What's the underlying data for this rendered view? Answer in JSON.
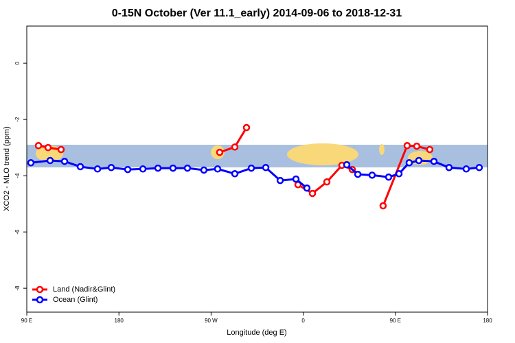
{
  "chart_data": {
    "type": "line",
    "title": "0-15N October (Ver 11.1_early)   2014-09-06 to 2018-12-31",
    "x_label": "Longitude (deg E)",
    "y_label": "XCO2 - MLO trend (ppm)",
    "xlim": [
      90,
      540
    ],
    "ylim": [
      -8.85,
      1.32
    ],
    "xticks": [
      {
        "value": 90,
        "label": "90 E"
      },
      180,
      {
        "value": 270,
        "label": "90 W"
      },
      {
        "value": 360,
        "label": "0"
      },
      {
        "value": 450,
        "label": "90 E"
      },
      {
        "value": 540,
        "label": "180"
      }
    ],
    "yticks": [
      0,
      -2,
      -4,
      -6,
      -8
    ],
    "legend": "bottom-left",
    "series": [
      {
        "name": "Land (Nadir&Glint)",
        "color": "#ff0000",
        "x": [
          101.4,
          110.8,
          123.5,
          null,
          278.4,
          293.2,
          304.6,
          null,
          354.9,
          369.0,
          383.1,
          397.8,
          407.9,
          null,
          438.0,
          461.5,
          470.9,
          483.6
        ],
        "values": [
          -2.93,
          -3.0,
          -3.07,
          null,
          -3.17,
          -2.98,
          -2.29,
          null,
          -4.32,
          -4.63,
          -4.22,
          -3.63,
          -3.78,
          null,
          -5.07,
          -2.93,
          -2.95,
          -3.07
        ]
      },
      {
        "name": "Ocean (Glint)",
        "color": "#0000ff",
        "x": [
          94.0,
          112.8,
          126.9,
          142.3,
          159.1,
          172.5,
          188.6,
          203.4,
          218.1,
          232.8,
          246.9,
          263.0,
          276.4,
          293.2,
          309.3,
          323.4,
          337.5,
          352.9,
          363.6,
          null,
          402.5,
          413.3,
          427.3,
          443.4,
          453.5,
          463.5,
          472.9,
          487.7,
          502.4,
          519.2,
          531.9
        ],
        "values": [
          -3.54,
          -3.46,
          -3.49,
          -3.68,
          -3.76,
          -3.71,
          -3.78,
          -3.76,
          -3.73,
          -3.73,
          -3.73,
          -3.8,
          -3.76,
          -3.93,
          -3.73,
          -3.71,
          -4.17,
          -4.12,
          -4.44,
          null,
          -3.61,
          -3.95,
          -3.98,
          -4.05,
          -3.93,
          -3.54,
          -3.46,
          -3.49,
          -3.71,
          -3.76,
          -3.71
        ]
      }
    ]
  }
}
